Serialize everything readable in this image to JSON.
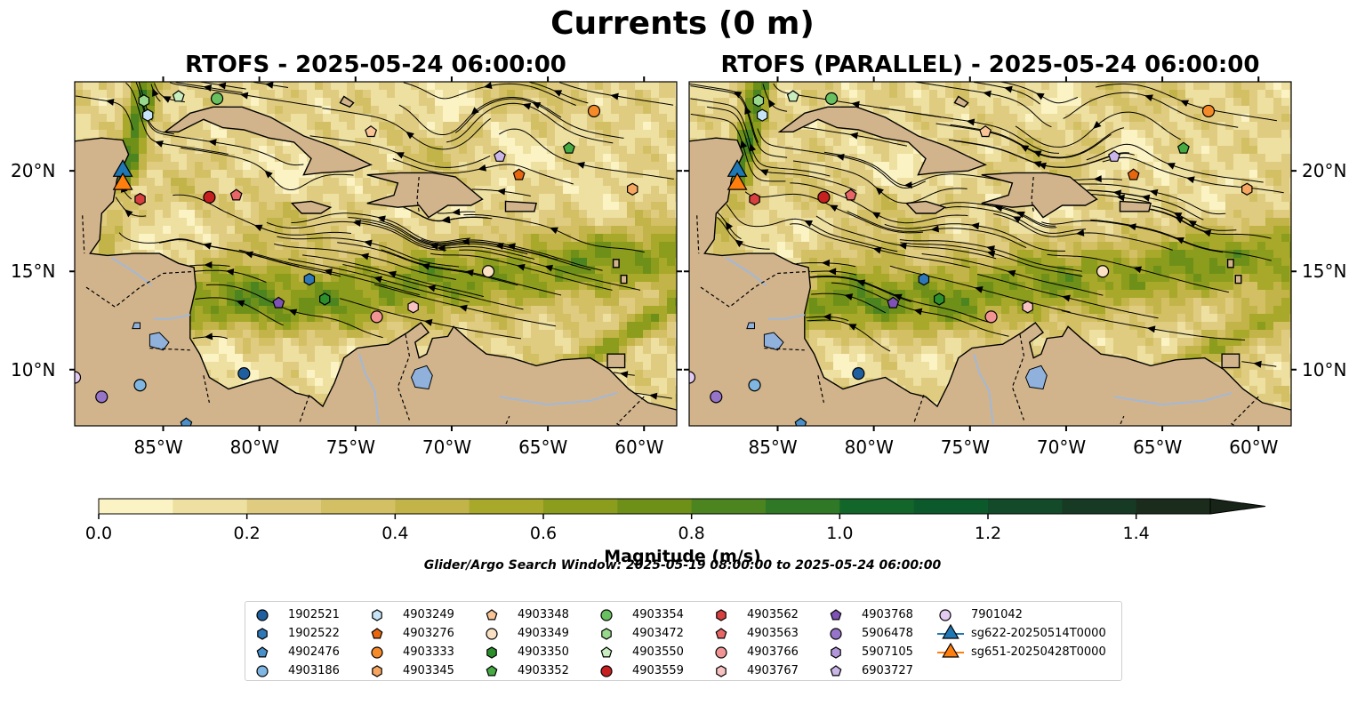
{
  "figure": {
    "title": "Currents (0 m)",
    "search_window": "Glider/Argo Search Window: 2025-05-19 08:00:00 to 2025-05-24 06:00:00",
    "colors": {
      "land": "#d2b48c",
      "lakes": "#8fb1dc",
      "rivers": "#a3b8d6",
      "streamlines": "#000000"
    }
  },
  "chart_data": [
    {
      "type": "heatmap",
      "title": "RTOFS - 2025-05-24 06:00:00",
      "x_ticks": [
        "85°W",
        "80°W",
        "75°W",
        "70°W",
        "65°W",
        "60°W"
      ],
      "y_ticks": [
        "20°N",
        "15°N",
        "10°N"
      ],
      "xlim": [
        -89.6,
        -58.3
      ],
      "ylim": [
        7.1,
        24.3
      ],
      "ytick_side": "left",
      "overlay": "streamlines"
    },
    {
      "type": "heatmap",
      "title": "RTOFS (PARALLEL) - 2025-05-24 06:00:00",
      "x_ticks": [
        "85°W",
        "80°W",
        "75°W",
        "70°W",
        "65°W",
        "60°W"
      ],
      "y_ticks": [
        "20°N",
        "15°N",
        "10°N"
      ],
      "xlim": [
        -89.6,
        -58.3
      ],
      "ylim": [
        7.1,
        24.3
      ],
      "ytick_side": "right",
      "overlay": "streamlines"
    }
  ],
  "colorbar": {
    "label": "Magnitude (m/s)",
    "min": 0.0,
    "max": 1.5,
    "extend": "max",
    "ticks": [
      "0.0",
      "0.2",
      "0.4",
      "0.6",
      "0.8",
      "1.0",
      "1.2",
      "1.4"
    ],
    "tick_values": [
      0,
      0.2,
      0.4,
      0.6,
      0.8,
      1.0,
      1.2,
      1.4
    ],
    "colors": [
      "#fbf3c4",
      "#ede0a0",
      "#e0cc80",
      "#d4c064",
      "#c2b448",
      "#a8a82a",
      "#8c9c1c",
      "#6e9018",
      "#4c8420",
      "#2e7826",
      "#12662a",
      "#0c5a2c",
      "#124a2a",
      "#173a24",
      "#1b2c1c"
    ],
    "extend_color": "#182418"
  },
  "legend": {
    "columns": [
      [
        {
          "label": "1902521",
          "marker": "circle",
          "color": "#1f5fa0"
        },
        {
          "label": "1902522",
          "marker": "hexagon",
          "color": "#2f78b8"
        },
        {
          "label": "4902476",
          "marker": "pentagon",
          "color": "#4a90c8"
        },
        {
          "label": "4903186",
          "marker": "circle",
          "color": "#7fb6e2"
        }
      ],
      [
        {
          "label": "4903249",
          "marker": "hexagon",
          "color": "#c6e3f7"
        },
        {
          "label": "4903276",
          "marker": "pentagon",
          "color": "#e8670e"
        },
        {
          "label": "4903333",
          "marker": "circle",
          "color": "#f58a28"
        },
        {
          "label": "4903345",
          "marker": "hexagon",
          "color": "#f7a660"
        }
      ],
      [
        {
          "label": "4903348",
          "marker": "pentagon",
          "color": "#f9c596"
        },
        {
          "label": "4903349",
          "marker": "circle",
          "color": "#fbe1c4"
        },
        {
          "label": "4903350",
          "marker": "hexagon",
          "color": "#2c8f2c"
        },
        {
          "label": "4903352",
          "marker": "pentagon",
          "color": "#46ab42"
        }
      ],
      [
        {
          "label": "4903354",
          "marker": "circle",
          "color": "#68c060"
        },
        {
          "label": "4903472",
          "marker": "hexagon",
          "color": "#98d88c"
        },
        {
          "label": "4903550",
          "marker": "pentagon",
          "color": "#c8eec0"
        },
        {
          "label": "4903559",
          "marker": "circle",
          "color": "#c62020"
        }
      ],
      [
        {
          "label": "4903562",
          "marker": "hexagon",
          "color": "#d84040"
        },
        {
          "label": "4903563",
          "marker": "pentagon",
          "color": "#e86666"
        },
        {
          "label": "4903766",
          "marker": "circle",
          "color": "#f29494"
        },
        {
          "label": "4903767",
          "marker": "hexagon",
          "color": "#f8c2c2"
        }
      ],
      [
        {
          "label": "4903768",
          "marker": "pentagon",
          "color": "#7e52b6"
        },
        {
          "label": "5906478",
          "marker": "circle",
          "color": "#9674c8"
        },
        {
          "label": "5907105",
          "marker": "hexagon",
          "color": "#b296da"
        },
        {
          "label": "6903727",
          "marker": "pentagon",
          "color": "#cab6e8"
        }
      ],
      [
        {
          "label": "7901042",
          "marker": "circle",
          "color": "#e2caf0"
        },
        {
          "label": "sg622-20250514T0000",
          "marker": "triangle",
          "color": "#1f77b4"
        },
        {
          "label": "sg651-20250428T0000",
          "marker": "triangle",
          "color": "#ff7f0e"
        }
      ]
    ]
  },
  "floats": [
    {
      "id": "4903472",
      "lon": -86.0,
      "lat": 23.4
    },
    {
      "id": "4903249",
      "lon": -85.8,
      "lat": 22.7
    },
    {
      "id": "4903550",
      "lon": -84.2,
      "lat": 23.6
    },
    {
      "id": "4903354",
      "lon": -82.2,
      "lat": 23.5
    },
    {
      "id": "4903348",
      "lon": -74.2,
      "lat": 21.9
    },
    {
      "id": "6903727",
      "lon": -67.5,
      "lat": 20.7
    },
    {
      "id": "4903333",
      "lon": -62.6,
      "lat": 22.9
    },
    {
      "id": "4903352",
      "lon": -63.9,
      "lat": 21.1
    },
    {
      "id": "4903276",
      "lon": -66.5,
      "lat": 19.8
    },
    {
      "id": "4903345",
      "lon": -60.6,
      "lat": 19.1
    },
    {
      "id": "4903562",
      "lon": -86.2,
      "lat": 18.6
    },
    {
      "id": "4903559",
      "lon": -82.6,
      "lat": 18.7
    },
    {
      "id": "4903563",
      "lon": -81.2,
      "lat": 18.8
    },
    {
      "id": "4903349",
      "lon": -68.1,
      "lat": 15.0
    },
    {
      "id": "1902522",
      "lon": -77.4,
      "lat": 14.6
    },
    {
      "id": "4903768",
      "lon": -79.0,
      "lat": 13.4
    },
    {
      "id": "4903350",
      "lon": -76.6,
      "lat": 13.6
    },
    {
      "id": "4903766",
      "lon": -73.9,
      "lat": 12.7
    },
    {
      "id": "4903767",
      "lon": -72.0,
      "lat": 13.2
    },
    {
      "id": "1902521",
      "lon": -80.8,
      "lat": 9.8
    },
    {
      "id": "7901042",
      "lon": -89.6,
      "lat": 9.6
    },
    {
      "id": "4903186",
      "lon": -86.2,
      "lat": 9.2
    },
    {
      "id": "5906478",
      "lon": -88.2,
      "lat": 8.6
    },
    {
      "id": "4902476",
      "lon": -83.8,
      "lat": 7.2
    }
  ],
  "gliders": [
    {
      "id": "sg622-20250514T0000",
      "lon": -87.1,
      "lat": 20.1
    },
    {
      "id": "sg651-20250428T0000",
      "lon": -87.1,
      "lat": 19.8
    }
  ]
}
